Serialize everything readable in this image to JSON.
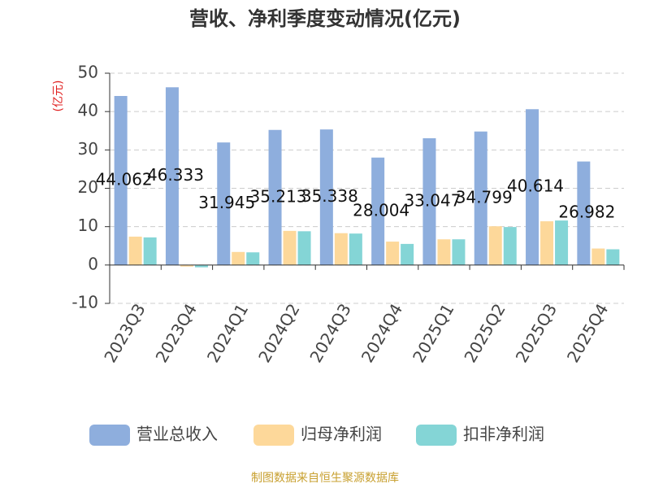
{
  "chart_data": {
    "type": "bar",
    "title": "营收、净利季度变动情况(亿元)",
    "ylabel": "(亿元)",
    "categories": [
      "2023Q3",
      "2023Q4",
      "2024Q1",
      "2024Q2",
      "2024Q3",
      "2024Q4",
      "2025Q1",
      "2025Q2",
      "2025Q3",
      "2025Q4"
    ],
    "series": [
      {
        "name": "营业总收入",
        "color": "#8eaedd",
        "values": [
          44.062,
          46.333,
          31.945,
          35.213,
          35.338,
          28.004,
          33.047,
          34.799,
          40.614,
          26.982
        ]
      },
      {
        "name": "归母净利润",
        "color": "#fdd89a",
        "values": [
          7.4,
          -0.4,
          3.4,
          8.9,
          8.3,
          6.1,
          6.7,
          10.1,
          11.4,
          4.3
        ]
      },
      {
        "name": "扣非净利润",
        "color": "#84d5d6",
        "values": [
          7.2,
          -0.6,
          3.3,
          8.8,
          8.2,
          5.5,
          6.7,
          9.9,
          11.6,
          4.1
        ]
      }
    ],
    "ylim": [
      -10,
      50
    ],
    "yticks": [
      -10,
      0,
      10,
      20,
      30,
      40,
      50
    ],
    "grid": true,
    "source": "制图数据来自恒生聚源数据库"
  }
}
